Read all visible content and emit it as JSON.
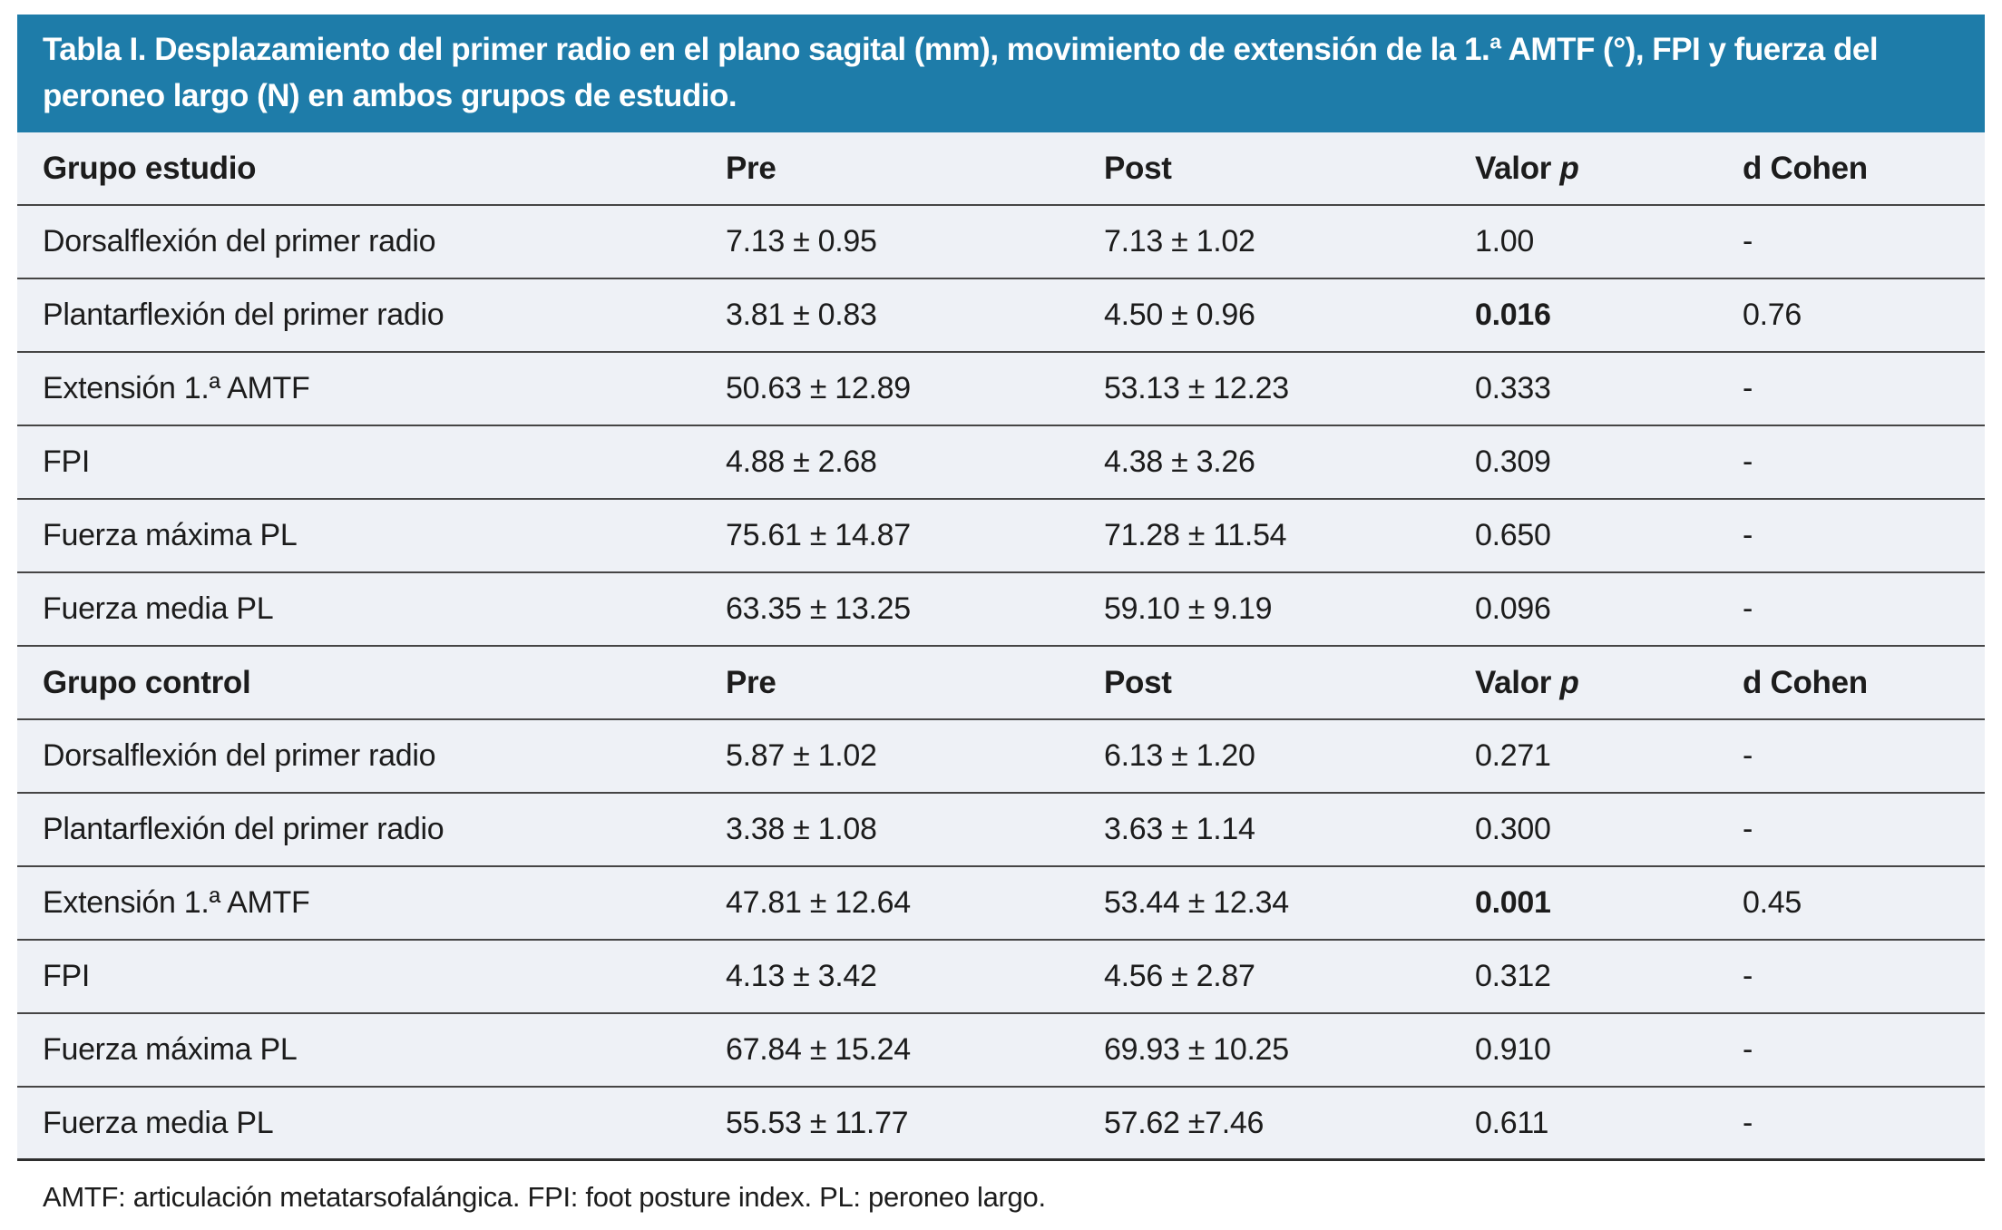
{
  "title": "Tabla I. Desplazamiento del primer radio en el plano sagital (mm), movimiento de extensión de la 1.ª AMTF (°), FPI y fuerza del peroneo largo (N) en ambos grupos de estudio.",
  "headers": {
    "pre": "Pre",
    "post": "Post",
    "valor_prefix": "Valor ",
    "valor_italic": "p",
    "dcohen": "d Cohen"
  },
  "sections": [
    {
      "group": "Grupo estudio",
      "rows": [
        {
          "label": "Dorsalflexión del primer radio",
          "pre": "7.13 ± 0.95",
          "post": "7.13 ± 1.02",
          "p": "1.00",
          "d": "-"
        },
        {
          "label": "Plantarflexión del primer radio",
          "pre": "3.81 ± 0.83",
          "post": "4.50 ± 0.96",
          "p": "0.016",
          "d": "0.76"
        },
        {
          "label": "Extensión 1.ª AMTF",
          "pre": "50.63 ± 12.89",
          "post": "53.13 ± 12.23",
          "p": "0.333",
          "d": "-"
        },
        {
          "label": "FPI",
          "pre": "4.88 ± 2.68",
          "post": "4.38 ± 3.26",
          "p": "0.309",
          "d": "-"
        },
        {
          "label": "Fuerza máxima PL",
          "pre": "75.61 ± 14.87",
          "post": "71.28 ± 11.54",
          "p": "0.650",
          "d": "-"
        },
        {
          "label": "Fuerza media PL",
          "pre": "63.35 ± 13.25",
          "post": "59.10 ± 9.19",
          "p": "0.096",
          "d": "-"
        }
      ]
    },
    {
      "group": "Grupo control",
      "rows": [
        {
          "label": "Dorsalflexión del primer radio",
          "pre": "5.87 ± 1.02",
          "post": "6.13 ± 1.20",
          "p": "0.271",
          "d": "-"
        },
        {
          "label": "Plantarflexión del primer radio",
          "pre": "3.38 ± 1.08",
          "post": "3.63 ± 1.14",
          "p": "0.300",
          "d": "-"
        },
        {
          "label": "Extensión 1.ª AMTF",
          "pre": "47.81 ± 12.64",
          "post": "53.44 ± 12.34",
          "p": "0.001",
          "d": "0.45"
        },
        {
          "label": "FPI",
          "pre": "4.13 ± 3.42",
          "post": "4.56 ± 2.87",
          "p": "0.312",
          "d": "-"
        },
        {
          "label": "Fuerza máxima PL",
          "pre": "67.84 ± 15.24",
          "post": "69.93 ± 10.25",
          "p": "0.910",
          "d": "-"
        },
        {
          "label": "Fuerza media PL",
          "pre": "55.53 ± 11.77",
          "post": "57.62 ±7.46",
          "p": "0.611",
          "d": "-"
        }
      ]
    }
  ],
  "footnote": "AMTF: articulación metatarsofalángica. FPI: foot posture index. PL: peroneo largo.",
  "colors": {
    "title_band_bg": "#1e7ca9",
    "title_text": "#ffffff",
    "row_bg": "#eef1f6",
    "divider": "#454545",
    "body_text": "#1c1c1c"
  }
}
